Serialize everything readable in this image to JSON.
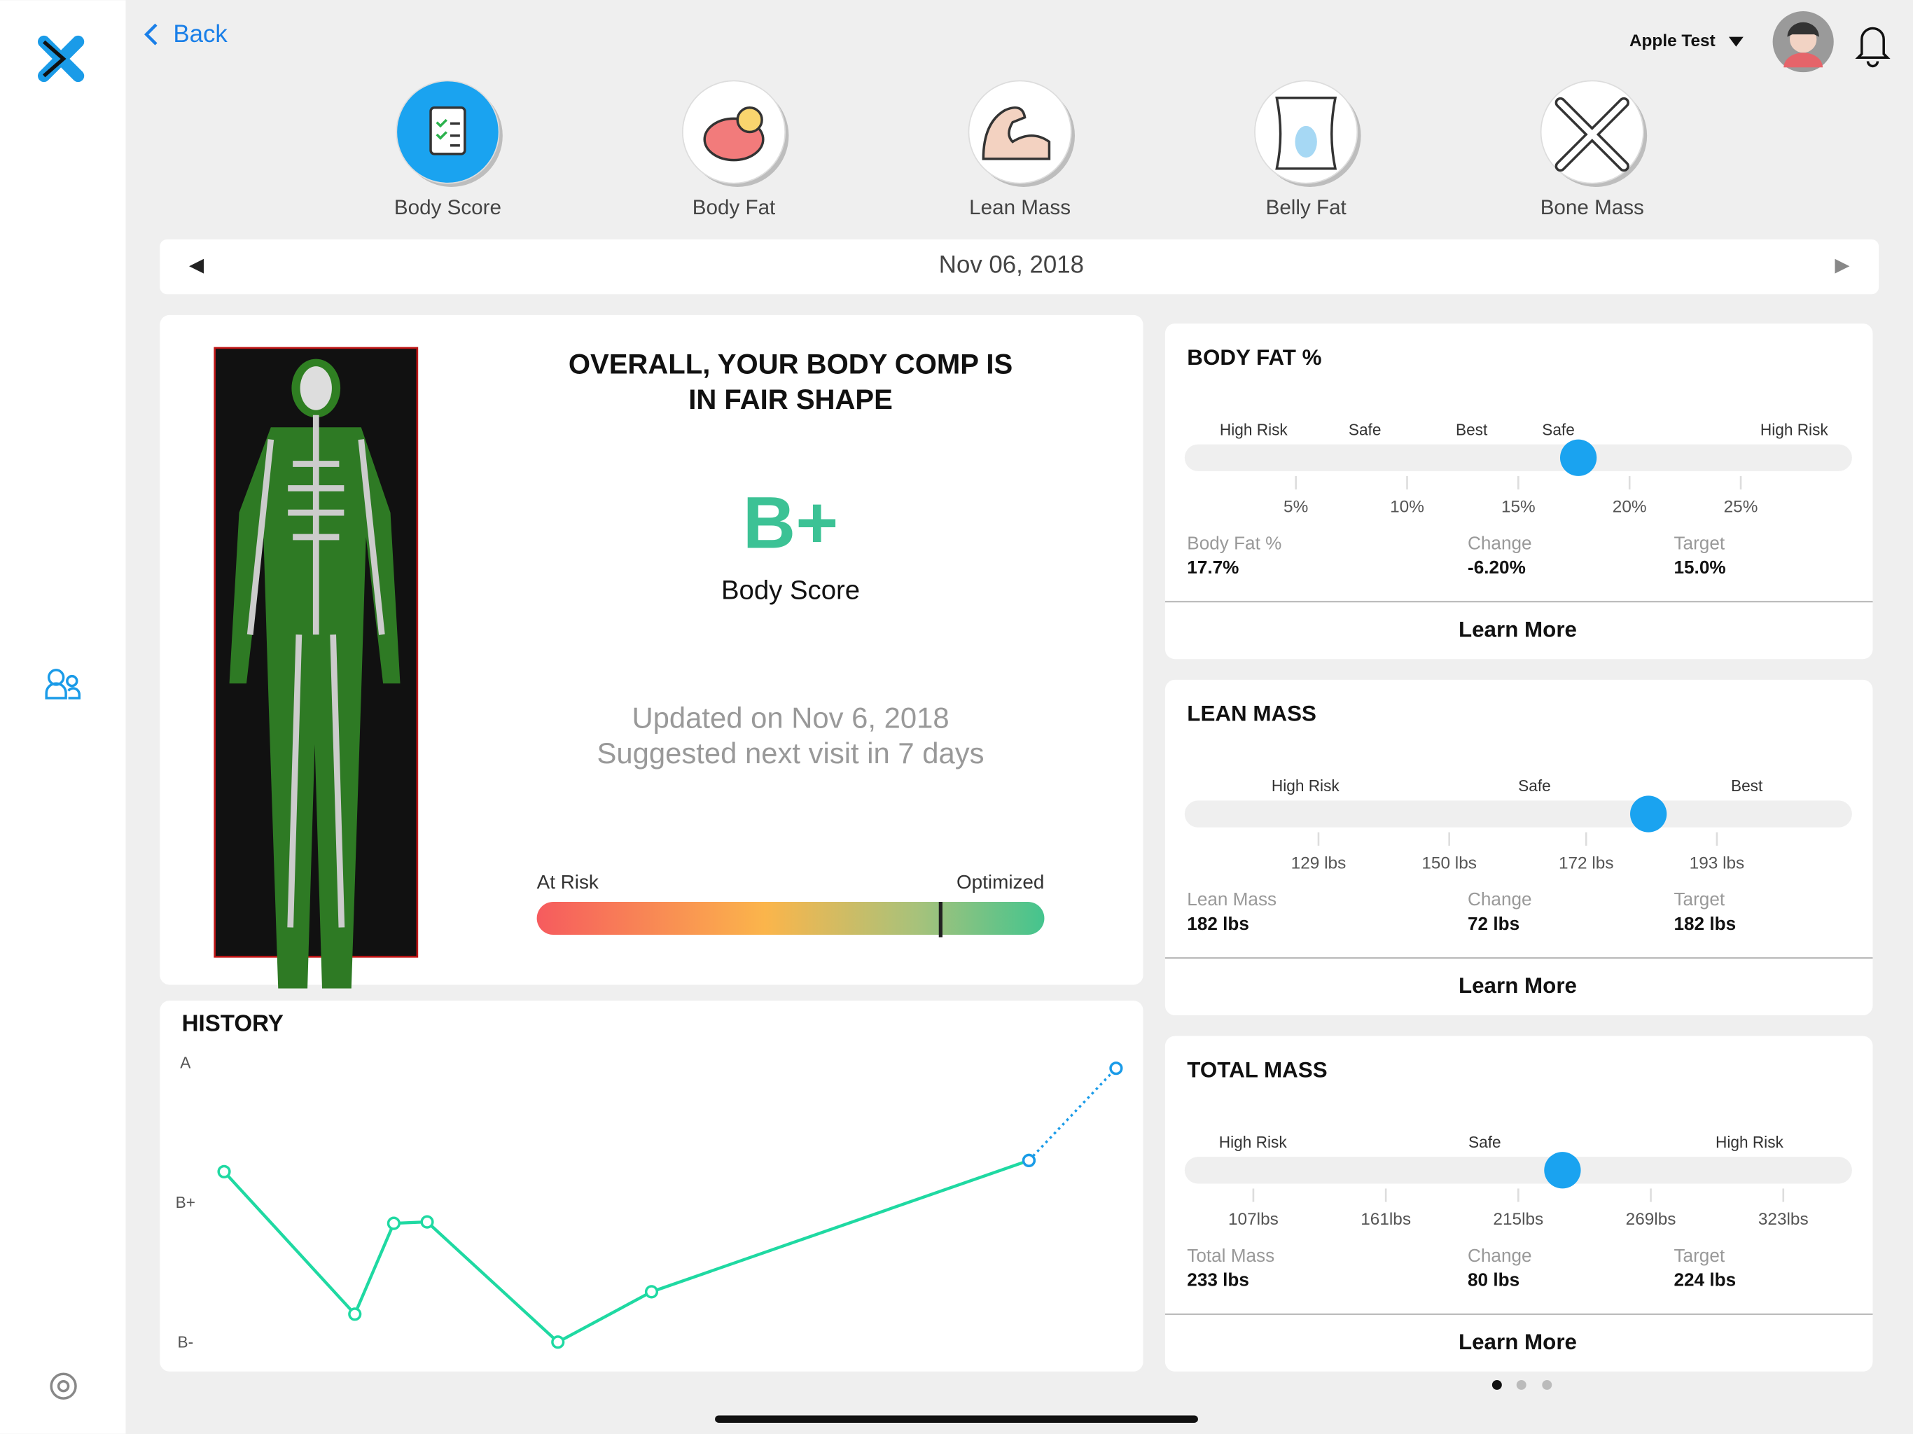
{
  "nav": {
    "back": "Back",
    "user": "Apple Test"
  },
  "tabs": [
    "Body Score",
    "Body Fat",
    "Lean Mass",
    "Belly Fat",
    "Bone Mass"
  ],
  "date": "Nov 06, 2018",
  "summary": {
    "title": [
      "OVERALL, YOUR BODY COMP IS",
      "IN FAIR SHAPE"
    ],
    "grade": "B+",
    "grade_label": "Body Score",
    "updated": "Updated on Nov 6, 2018",
    "next_visit": "Suggested next visit in 7 days",
    "scale_low": "At Risk",
    "scale_high": "Optimized"
  },
  "history": {
    "title": "HISTORY",
    "xlim": [
      0,
      100
    ],
    "ylim": [
      0,
      2
    ],
    "yticks": [
      {
        "value": 2,
        "label": "A"
      },
      {
        "value": 1,
        "label": "B+"
      },
      {
        "value": 0,
        "label": "B-"
      }
    ],
    "x": [
      1.8,
      15.9,
      20.1,
      23.7,
      37.8,
      47.9,
      88.6,
      98
    ],
    "series": [
      {
        "color": "#1fd9a2",
        "dotted": false,
        "values": [
          1.23,
          0.21,
          0.86,
          0.87,
          0.01,
          0.37,
          1.31,
          null
        ]
      },
      {
        "color": "#1a9be8",
        "dotted": true,
        "values": [
          null,
          null,
          null,
          null,
          null,
          null,
          1.31,
          1.97
        ]
      }
    ]
  },
  "metrics": [
    {
      "title": "BODY FAT %",
      "xlim": [
        0,
        30
      ],
      "zones": [
        {
          "value": 3.1,
          "label": "High Risk"
        },
        {
          "value": 8.1,
          "label": "Safe"
        },
        {
          "value": 12.9,
          "label": "Best"
        },
        {
          "value": 16.8,
          "label": "Safe"
        },
        {
          "value": 27.4,
          "label": "High Risk"
        }
      ],
      "ticks": [
        {
          "value": 5,
          "label": "5%"
        },
        {
          "value": 10,
          "label": "10%"
        },
        {
          "value": 15,
          "label": "15%"
        },
        {
          "value": 20,
          "label": "20%"
        },
        {
          "value": 25,
          "label": "25%"
        }
      ],
      "stat_label": "Body Fat %",
      "value": 17.7,
      "value_label": "17.7%",
      "change": {
        "label": "Change",
        "text": "-6.20%"
      },
      "target": {
        "label": "Target",
        "text": "15.0%"
      },
      "button": "Learn More"
    },
    {
      "title": "LEAN MASS",
      "xlim": [
        107.5,
        214.7
      ],
      "zones": [
        {
          "value": 126.9,
          "label": "High Risk"
        },
        {
          "value": 163.7,
          "label": "Safe"
        },
        {
          "value": 197.8,
          "label": "Best"
        }
      ],
      "ticks": [
        {
          "value": 129,
          "label": "129 lbs"
        },
        {
          "value": 150,
          "label": "150 lbs"
        },
        {
          "value": 172,
          "label": "172 lbs"
        },
        {
          "value": 193,
          "label": "193 lbs"
        }
      ],
      "stat_label": "Lean Mass",
      "value": 182,
      "value_label": "182 lbs",
      "change": {
        "label": "Change",
        "text": "72 lbs"
      },
      "target": {
        "label": "Target",
        "text": "182 lbs"
      },
      "button": "Learn More"
    },
    {
      "title": "TOTAL MASS",
      "xlim": [
        79,
        351
      ],
      "zones": [
        {
          "value": 106.8,
          "label": "High Risk"
        },
        {
          "value": 201.3,
          "label": "Safe"
        },
        {
          "value": 309.2,
          "label": "High Risk"
        }
      ],
      "ticks": [
        {
          "value": 107,
          "label": "107lbs"
        },
        {
          "value": 161,
          "label": "161lbs"
        },
        {
          "value": 215,
          "label": "215lbs"
        },
        {
          "value": 269,
          "label": "269lbs"
        },
        {
          "value": 323,
          "label": "323lbs"
        }
      ],
      "stat_label": "Total Mass",
      "value": 233,
      "value_label": "233 lbs",
      "change": {
        "label": "Change",
        "text": "80 lbs"
      },
      "target": {
        "label": "Target",
        "text": "224 lbs"
      },
      "button": "Learn More"
    }
  ]
}
